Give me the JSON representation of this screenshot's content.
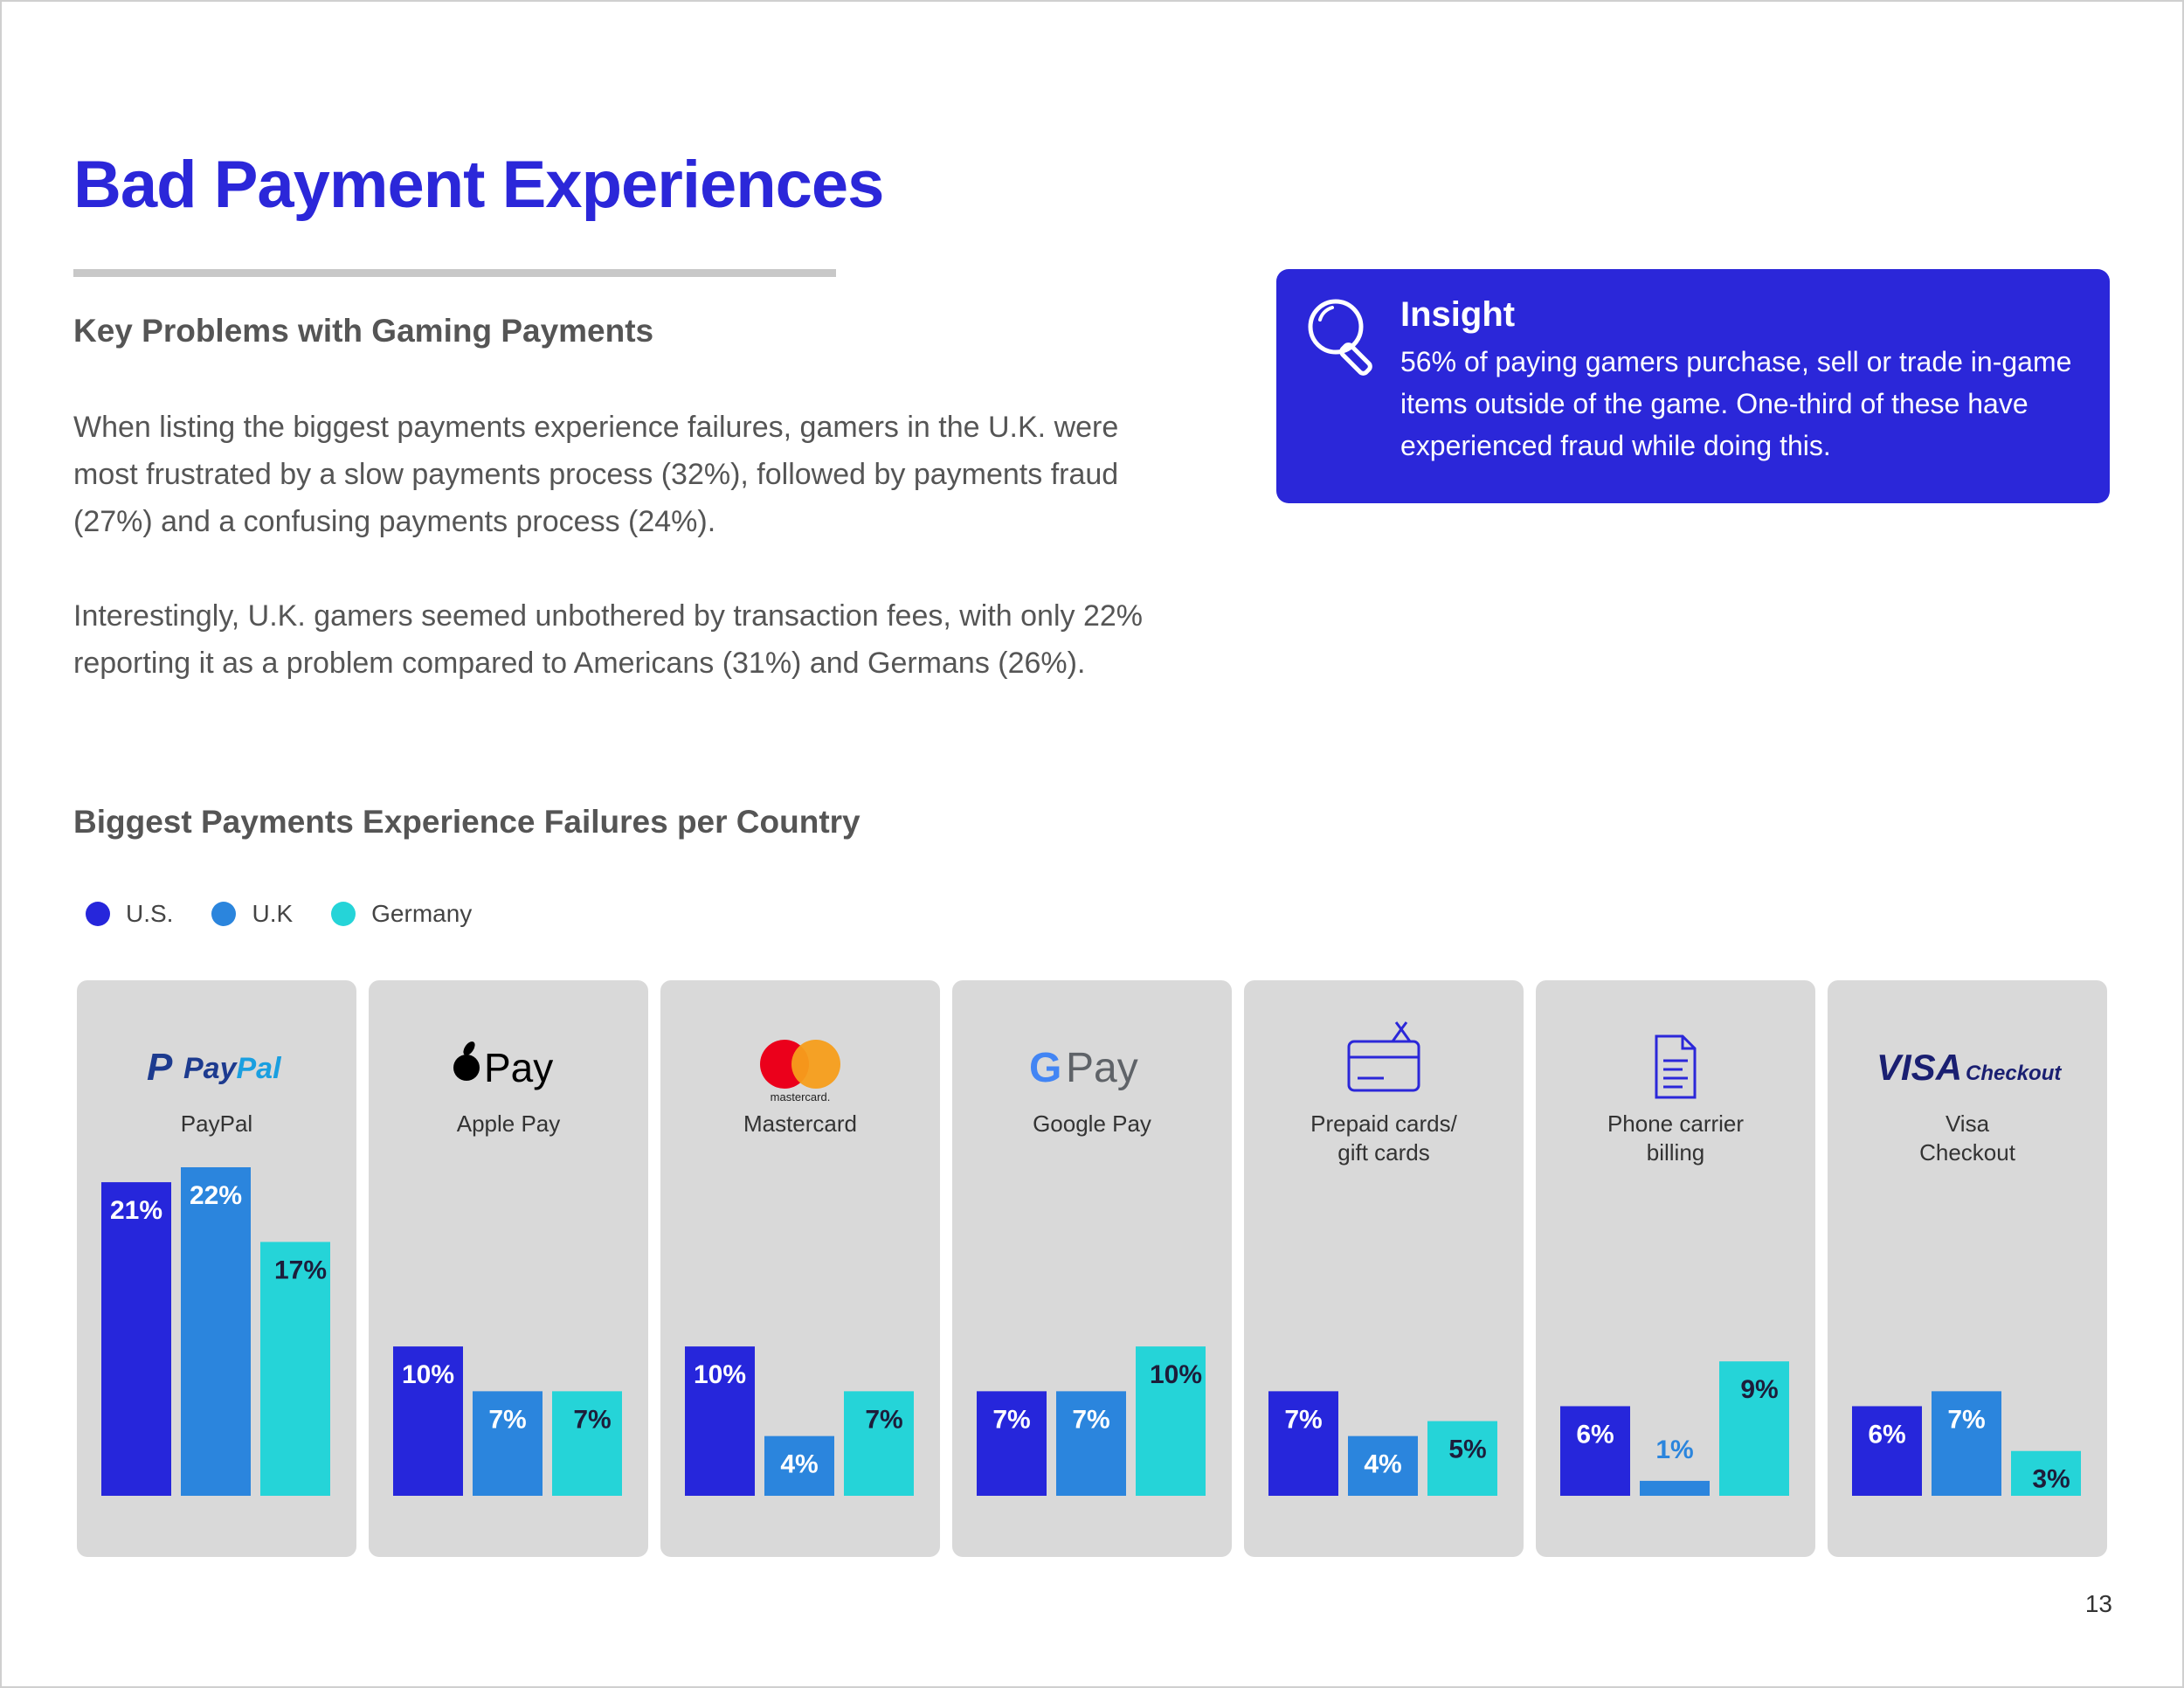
{
  "page": {
    "title": "Bad Payment Experiences",
    "section_heading": "Key Problems with Gaming Payments",
    "paragraph_1": "When listing the biggest payments experience failures, gamers in the U.K. were most frustrated by a slow payments process (32%), followed by payments fraud (27%) and a confusing payments process (24%).",
    "paragraph_2": "Interestingly, U.K. gamers seemed unbothered by transaction fees, with only 22% reporting it as a problem compared to Americans (31%) and Germans (26%).",
    "page_number": "13"
  },
  "insight": {
    "icon": "magnifier-icon",
    "title": "Insight",
    "text": "56% of paying gamers purchase, sell or trade in-game items outside of the game. One-third of these have experienced fraud while doing this."
  },
  "colors": {
    "brand": "#2b27d9",
    "us": "#2626db",
    "uk": "#2b85dd",
    "germany": "#25d4d8",
    "panel": "#d9d9d9"
  },
  "chart_data": {
    "type": "bar",
    "title": "Biggest Payments Experience Failures per Country",
    "legend": [
      "U.S.",
      "U.K",
      "Germany"
    ],
    "legend_position": "top-left",
    "categories": [
      {
        "name": "PayPal",
        "logo_text": "PayPal",
        "logo": "paypal-logo"
      },
      {
        "name": "Apple Pay",
        "logo_text": "Pay",
        "logo": "apple-pay-logo"
      },
      {
        "name": "Mastercard",
        "logo_text": "mastercard.",
        "logo": "mastercard-logo"
      },
      {
        "name": "Google Pay",
        "logo_text": "Pay",
        "logo": "google-pay-logo"
      },
      {
        "name": "Prepaid cards/\ngift cards",
        "logo": "gift-card-icon"
      },
      {
        "name": "Phone carrier\nbilling",
        "logo": "document-icon"
      },
      {
        "name": "Visa\nCheckout",
        "logo_text": "VISA",
        "logo_text_2": "Checkout",
        "logo": "visa-checkout-logo"
      }
    ],
    "series": [
      {
        "name": "U.S.",
        "values": [
          21,
          10,
          10,
          7,
          7,
          6,
          6
        ],
        "labels": [
          "21%",
          "10%",
          "10%",
          "7%",
          "7%",
          "6%",
          "6%"
        ]
      },
      {
        "name": "U.K",
        "values": [
          22,
          7,
          4,
          7,
          4,
          1,
          7
        ],
        "labels": [
          "22%",
          "7%",
          "4%",
          "7%",
          "4%",
          "1%",
          "7%"
        ]
      },
      {
        "name": "Germany",
        "values": [
          17,
          7,
          7,
          10,
          5,
          9,
          3
        ],
        "labels": [
          "17%",
          "7%",
          "7%",
          "10%",
          "5%",
          "9%",
          "3%"
        ]
      }
    ],
    "ylim": [
      0,
      22
    ],
    "grid": false
  }
}
